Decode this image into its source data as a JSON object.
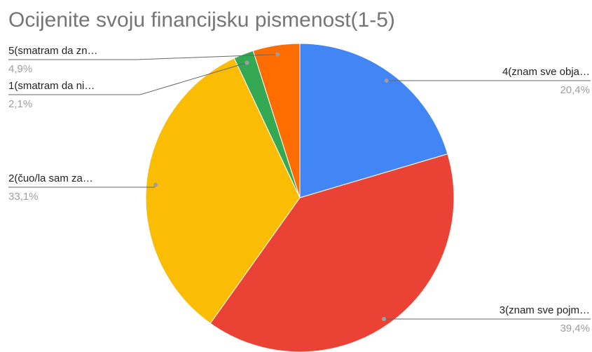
{
  "chart_data": {
    "type": "pie",
    "title": "Ocijenite svoju financijsku pismenost(1-5)",
    "categories": [
      "4(znam sve obja…",
      "3(znam sve pojm…",
      "2(čuo/la sam za…",
      "1(smatram da ni…",
      "5(smatram da zn…"
    ],
    "values": [
      20.4,
      39.4,
      33.1,
      2.1,
      4.9
    ],
    "value_labels": [
      "20,4%",
      "39,4%",
      "33,1%",
      "2,1%",
      "4,9%"
    ],
    "colors": [
      "#4285f4",
      "#ea4335",
      "#fbbc04",
      "#34a853",
      "#ff6d01"
    ]
  }
}
